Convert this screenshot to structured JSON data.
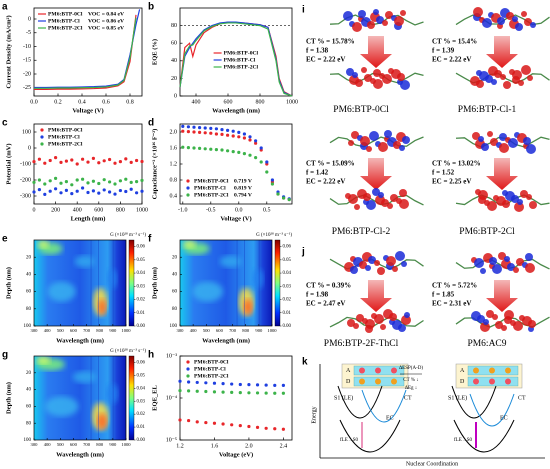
{
  "chart_data": [
    {
      "type": "line",
      "panel": "a",
      "xlabel": "Voltage (V)",
      "ylabel": "Current Density (mA/cm²)",
      "legend": "upper left",
      "x": [
        0,
        0.1,
        0.2,
        0.3,
        0.4,
        0.5,
        0.6,
        0.7,
        0.75,
        0.8,
        0.85,
        0.88
      ],
      "xlim": [
        0,
        0.9
      ],
      "ylim": [
        -28,
        4
      ],
      "xticks": [
        {
          "value": 0,
          "label": "0.0"
        },
        0.2,
        0.4,
        0.6,
        0.8
      ],
      "yticks": [
        0,
        -5,
        -10,
        -15,
        -20,
        -25
      ],
      "series": [
        {
          "name": "PM6:BTP-0Cl",
          "note": "VOC = 0.84 eV",
          "color": "#e8262a",
          "values": [
            -25.6,
            -25.6,
            -25.5,
            -25.5,
            -25.4,
            -25.3,
            -25.1,
            -24.3,
            -22.8,
            -15.5,
            1.5,
            null
          ]
        },
        {
          "name": "PM6:BTP-Cl",
          "note": "VOC = 0.86 eV",
          "color": "#1f3fe0",
          "values": [
            -24.9,
            -24.9,
            -24.8,
            -24.8,
            -24.7,
            -24.6,
            -24.4,
            -23.7,
            -22.0,
            -13.0,
            -2.0,
            3.5
          ]
        },
        {
          "name": "PM6:BTP-2Cl",
          "note": "VOC = 0.85 eV",
          "color": "#3cb34a",
          "values": [
            -25.2,
            -25.2,
            -25.1,
            -25.1,
            -25.0,
            -24.9,
            -24.7,
            -24.0,
            -22.3,
            -14.2,
            0.5,
            null
          ]
        }
      ]
    },
    {
      "type": "line",
      "panel": "b",
      "xlabel": "Wavelength (nm)",
      "ylabel": "EQE (%)",
      "legend": "lower center",
      "hline": 80,
      "x": [
        300,
        330,
        360,
        380,
        400,
        450,
        500,
        550,
        600,
        650,
        700,
        750,
        800,
        850,
        900,
        920,
        950,
        1000
      ],
      "xlim": [
        300,
        1000
      ],
      "ylim": [
        0,
        100
      ],
      "xticks": [
        400,
        600,
        800,
        1000
      ],
      "yticks": [
        0,
        20,
        40,
        60,
        80
      ],
      "series": [
        {
          "name": "PM6:BTP-0Cl",
          "color": "#e8262a",
          "values": [
            10,
            55,
            60,
            45,
            58,
            72,
            78,
            82,
            84,
            83,
            83,
            82,
            81,
            78,
            45,
            20,
            5,
            0
          ]
        },
        {
          "name": "PM6:BTP-Cl",
          "color": "#1f3fe0",
          "values": [
            10,
            45,
            55,
            60,
            65,
            75,
            80,
            83,
            84,
            84,
            83,
            82,
            81,
            78,
            42,
            18,
            4,
            0
          ]
        },
        {
          "name": "PM6:BTP-2Cl",
          "color": "#3cb34a",
          "values": [
            10,
            48,
            57,
            58,
            63,
            74,
            79,
            82,
            83,
            83,
            82,
            81,
            80,
            76,
            40,
            16,
            3,
            0
          ]
        }
      ]
    },
    {
      "type": "scatter",
      "panel": "c",
      "xlabel": "Length (nm)",
      "ylabel": "Potential (mV)",
      "legend": "upper left",
      "x": [
        0,
        50,
        100,
        150,
        200,
        250,
        300,
        350,
        400,
        450,
        500,
        550,
        600,
        650,
        700,
        750,
        800,
        850,
        900,
        950,
        1000
      ],
      "xlim": [
        0,
        1000
      ],
      "ylim": [
        -350,
        150
      ],
      "xticks": [
        0,
        200,
        400,
        600,
        800,
        1000
      ],
      "yticks": [
        -300,
        -200,
        -100,
        0,
        100
      ],
      "series": [
        {
          "name": "PM6:BTP-0Cl",
          "color": "#e8262a",
          "values": [
            -85,
            -70,
            -95,
            -78,
            -60,
            -90,
            -82,
            -75,
            -100,
            -70,
            -88,
            -65,
            -92,
            -80,
            -72,
            -95,
            -85,
            -68,
            -90,
            -78,
            -84
          ]
        },
        {
          "name": "PM6:BTP-Cl",
          "color": "#1f3fe0",
          "values": [
            -275,
            -260,
            -290,
            -270,
            -255,
            -280,
            -265,
            -285,
            -270,
            -250,
            -278,
            -268,
            -282,
            -262,
            -275,
            -288,
            -266,
            -272,
            -258,
            -280,
            -270
          ]
        },
        {
          "name": "PM6:BTP-2Cl",
          "color": "#3cb34a",
          "values": [
            -215,
            -200,
            -225,
            -205,
            -190,
            -220,
            -210,
            -230,
            -200,
            -195,
            -218,
            -208,
            -222,
            -198,
            -212,
            -225,
            -205,
            -195,
            -215,
            -210,
            -202
          ]
        }
      ]
    },
    {
      "type": "scatter",
      "panel": "d",
      "xlabel": "Voltage (V)",
      "ylabel": "Capacitance⁻² (×10¹⁶ F⁻²)",
      "legend": "lower left",
      "x": [
        -1.0,
        -0.9,
        -0.8,
        -0.7,
        -0.6,
        -0.5,
        -0.4,
        -0.3,
        -0.2,
        -0.1,
        0.0,
        0.1,
        0.2,
        0.3,
        0.4,
        0.5,
        0.6,
        0.7,
        0.8,
        0.9
      ],
      "xlim": [
        -1.05,
        0.95
      ],
      "ylim": [
        0.2,
        2.2
      ],
      "xticks": [
        {
          "value": -1.0,
          "label": "-1.0"
        },
        -0.5,
        {
          "value": 0,
          "label": "0.0"
        },
        0.5
      ],
      "yticks": [
        0.4,
        0.8,
        1.2,
        1.6,
        {
          "value": 2,
          "label": "2.0"
        }
      ],
      "series": [
        {
          "name": "PM6:BTP-0Cl",
          "note": "0.719 V",
          "color": "#e8262a",
          "values": [
            2.02,
            2.01,
            2.0,
            1.99,
            1.98,
            1.97,
            1.95,
            1.94,
            1.92,
            1.9,
            1.88,
            1.85,
            1.8,
            1.72,
            1.55,
            1.2,
            0.75,
            0.45,
            0.35,
            0.32
          ]
        },
        {
          "name": "PM6:BTP-Cl",
          "note": "0.819 V",
          "color": "#1f3fe0",
          "values": [
            2.14,
            2.13,
            2.12,
            2.11,
            2.1,
            2.09,
            2.08,
            2.06,
            2.04,
            2.02,
            1.99,
            1.95,
            1.88,
            1.78,
            1.6,
            1.25,
            0.8,
            0.5,
            0.38,
            0.33
          ]
        },
        {
          "name": "PM6:BTP-2Cl",
          "note": "0.794 V",
          "color": "#3cb34a",
          "values": [
            1.62,
            1.61,
            1.6,
            1.59,
            1.58,
            1.57,
            1.56,
            1.55,
            1.53,
            1.51,
            1.49,
            1.46,
            1.42,
            1.36,
            1.25,
            1.0,
            0.7,
            0.45,
            0.35,
            0.31
          ]
        }
      ]
    },
    {
      "type": "scatter",
      "panel": "h",
      "xlabel": "Voltage (eV)",
      "ylabel": "EQE_EL",
      "legend": "upper left",
      "ylog": true,
      "x": [
        1.2,
        1.3,
        1.4,
        1.5,
        1.6,
        1.7,
        1.8,
        1.9,
        2.0,
        2.1,
        2.2,
        2.3,
        2.4
      ],
      "xlim": [
        1.2,
        2.5
      ],
      "ylim": [
        1e-05,
        0.001
      ],
      "xticks": [
        1.2,
        1.6,
        {
          "value": 2,
          "label": "2.0"
        },
        2.4
      ],
      "yticks": [
        {
          "value": 1e-05,
          "label": "10⁻⁵"
        },
        {
          "value": 0.0001,
          "label": "10⁻⁴"
        },
        {
          "value": 0.001,
          "label": "10⁻³"
        }
      ],
      "series": [
        {
          "name": "PM6:BTP-0Cl",
          "color": "#e8262a",
          "values": [
            3e-05,
            2.9e-05,
            2.7e-05,
            2.6e-05,
            2.5e-05,
            2.4e-05,
            2.3e-05,
            2.2e-05,
            2.1e-05,
            2e-05,
            1.9e-05,
            1.85e-05,
            1.8e-05
          ]
        },
        {
          "name": "PM6:BTP-Cl",
          "color": "#1f3fe0",
          "values": [
            0.00025,
            0.00024,
            0.000235,
            0.00023,
            0.000225,
            0.00022,
            0.000215,
            0.00021,
            0.000208,
            0.000205,
            0.000203,
            0.0002,
            0.0002
          ]
        },
        {
          "name": "PM6:BTP-2Cl",
          "color": "#3cb34a",
          "values": [
            0.00015,
            0.000148,
            0.000145,
            0.000143,
            0.00014,
            0.000138,
            0.000136,
            0.000134,
            0.000133,
            0.000132,
            0.000131,
            0.00013,
            0.00013
          ]
        }
      ]
    }
  ],
  "heatmaps": [
    {
      "panel": "e",
      "xlabel": "Wavelength (nm)",
      "ylabel": "Depth (nm)",
      "colorbar_label": "G (×10²⁸ m⁻³ s⁻¹)",
      "xlim": [
        300,
        1000
      ],
      "ylim": [
        0,
        100
      ],
      "xticks": [
        300,
        400,
        500,
        600,
        700,
        800,
        900,
        1000
      ],
      "yticks": [
        20,
        40,
        60,
        80,
        100
      ],
      "clim": [
        0,
        0.065
      ],
      "cticks": [
        {
          "value": 0,
          "label": "0.00"
        },
        0.01,
        0.02,
        0.03,
        0.04,
        0.05,
        0.06
      ]
    },
    {
      "panel": "f",
      "xlabel": "Wavelength (nm)",
      "ylabel": "Depth (nm)",
      "colorbar_label": "G (×10²⁸ m⁻³ s⁻¹)",
      "xlim": [
        300,
        1000
      ],
      "ylim": [
        0,
        100
      ],
      "xticks": [
        300,
        400,
        500,
        600,
        700,
        800,
        900,
        1000
      ],
      "yticks": [
        20,
        40,
        60,
        80,
        100
      ],
      "clim": [
        0,
        0.065
      ],
      "cticks": [
        {
          "value": 0,
          "label": "0.00"
        },
        0.01,
        0.02,
        0.03,
        0.04,
        0.05,
        0.06
      ]
    },
    {
      "panel": "g",
      "xlabel": "Wavelength (nm)",
      "ylabel": "Depth (nm)",
      "colorbar_label": "G (×10²⁸ m⁻³ s⁻¹)",
      "xlim": [
        300,
        1000
      ],
      "ylim": [
        0,
        100
      ],
      "xticks": [
        300,
        400,
        500,
        600,
        700,
        800,
        900,
        1000
      ],
      "yticks": [
        20,
        40,
        60,
        80,
        100
      ],
      "clim": [
        0,
        0.065
      ],
      "cticks": [
        {
          "value": 0,
          "label": "0.00"
        },
        0.01,
        0.02,
        0.03,
        0.04,
        0.05,
        0.06
      ]
    }
  ],
  "molecules": {
    "panel_i": "i",
    "panel_j": "j",
    "cards": [
      {
        "ct": "CT % = 15.78%",
        "f": "f = 1.38",
        "ec": "EC = 2.22 eV",
        "name": "PM6:BTP-0Cl"
      },
      {
        "ct": "CT % = 15.4%",
        "f": "f = 1.39",
        "ec": "EC = 2.22 eV",
        "name": "PM6:BTP-Cl-1"
      },
      {
        "ct": "CT % = 15.09%",
        "f": "f = 1.42",
        "ec": "EC = 2.22 eV",
        "name": "PM6:BTP-Cl-2"
      },
      {
        "ct": "CT % = 13.02%",
        "f": "f = 1.52",
        "ec": "EC = 2.25 eV",
        "name": "PM6:BTP-2Cl"
      },
      {
        "ct": "CT % = 0.39%",
        "f": "f = 1.98",
        "ec": "EC = 2.47 eV",
        "name": "PM6:BTP-2F-ThCl"
      },
      {
        "ct": "CT % = 5.72%",
        "f": "f = 1.85",
        "ec": "EC = 2.31 eV",
        "name": "PM6:AC9"
      }
    ]
  },
  "diagram": {
    "panel": "k",
    "acceptor": "A",
    "donor": "D",
    "le_label": "S1 (LE)",
    "ct_label": "CT",
    "ec_label": "EC",
    "delta_esp": "ΔESP(A-D)",
    "ct_change": "CT % ↓",
    "eg_change": "ΔEg ↓",
    "transition": "fLE→S0",
    "y_label": "Energy",
    "x_label": "Nuclear Coordination"
  }
}
